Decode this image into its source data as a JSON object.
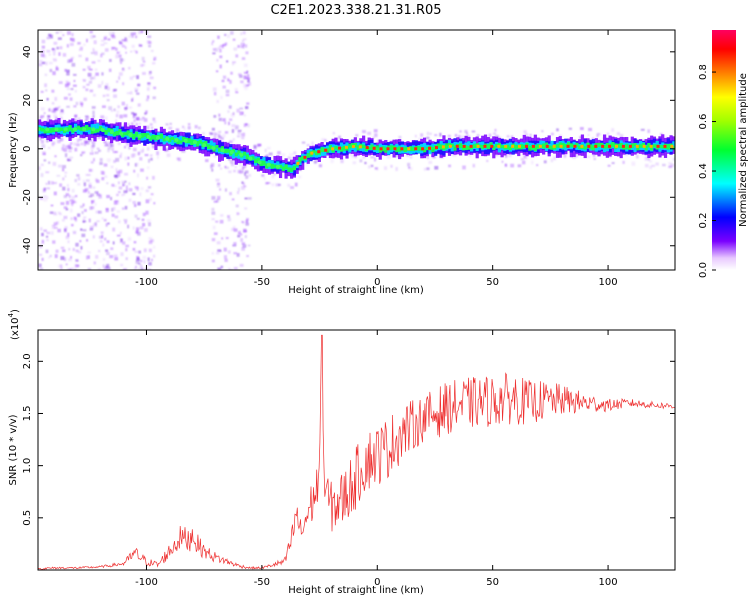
{
  "title": "C2E1.2023.338.21.31.R05",
  "colors": {
    "snr_line": "#ee3030",
    "frame": "#000000",
    "background": "#ffffff"
  },
  "chart_data": [
    {
      "type": "heatmap",
      "xlabel": "Height of straight line (km)",
      "ylabel": "Frequency (Hz)",
      "xlim": [
        -147,
        129
      ],
      "ylim": [
        -50,
        49
      ],
      "xticks": [
        "-100",
        "-50",
        "0",
        "50",
        "100"
      ],
      "yticks": [
        "-40",
        "-20",
        "0",
        "20",
        "40"
      ],
      "xtick_values": [
        -100,
        -50,
        0,
        50,
        100
      ],
      "ytick_values": [
        -40,
        -20,
        0,
        20,
        40
      ],
      "ridge": {
        "x": [
          -147,
          -140,
          -130,
          -120,
          -115,
          -110,
          -100,
          -90,
          -80,
          -70,
          -65,
          -60,
          -55,
          -50,
          -45,
          -40,
          -37,
          -34,
          -30,
          -25,
          -20,
          -10,
          0,
          10,
          20,
          30,
          40,
          50,
          60,
          70,
          80,
          90,
          100,
          110,
          120,
          129
        ],
        "y": [
          8,
          8,
          8,
          8,
          7,
          6,
          5,
          4,
          3,
          0,
          -1,
          -2,
          -4,
          -6,
          -7,
          -8,
          -8,
          -5,
          -2,
          -1,
          0,
          1,
          0,
          0,
          0,
          1,
          1,
          1,
          1,
          1,
          1,
          1,
          1,
          1,
          1,
          1
        ]
      },
      "colorbar": {
        "label": "Normalized spectral amplitude",
        "ticks": [
          "0.0",
          "0.2",
          "0.4",
          "0.6",
          "0.8"
        ],
        "tick_values": [
          0.0,
          0.2,
          0.4,
          0.6,
          0.8
        ],
        "range": [
          0,
          0.97
        ]
      }
    },
    {
      "type": "line",
      "xlabel": "Height of straight line (km)",
      "ylabel": "SNR (10 * v/v)",
      "multiplier": "(x10",
      "multiplier_exp": "4",
      "multiplier_close": ")",
      "xlim": [
        -147,
        129
      ],
      "ylim": [
        0,
        2.3
      ],
      "xticks": [
        "-100",
        "-50",
        "0",
        "50",
        "100"
      ],
      "yticks": [
        "0.5",
        "1.0",
        "1.5",
        "2.0"
      ],
      "xtick_values": [
        -100,
        -50,
        0,
        50,
        100
      ],
      "ytick_values": [
        0.5,
        1.0,
        1.5,
        2.0
      ],
      "series": [
        {
          "x": [
            -147,
            -140,
            -130,
            -120,
            -110,
            -105,
            -100,
            -95,
            -90,
            -85,
            -82,
            -80,
            -78,
            -75,
            -70,
            -65,
            -60,
            -55,
            -50,
            -45,
            -40,
            -37,
            -35,
            -33,
            -30,
            -27,
            -25,
            -24,
            -23,
            -20,
            -15,
            -10,
            -5,
            0,
            5,
            10,
            15,
            20,
            25,
            30,
            35,
            40,
            50,
            60,
            65,
            70,
            80,
            90,
            100,
            110,
            120,
            129
          ],
          "y": [
            0.01,
            0.02,
            0.02,
            0.03,
            0.06,
            0.16,
            0.08,
            0.05,
            0.18,
            0.32,
            0.28,
            0.35,
            0.25,
            0.18,
            0.12,
            0.08,
            0.04,
            0.02,
            0.02,
            0.05,
            0.08,
            0.3,
            0.55,
            0.35,
            0.55,
            0.72,
            0.9,
            2.22,
            0.8,
            0.6,
            0.68,
            0.85,
            1.05,
            1.1,
            1.18,
            1.3,
            1.38,
            1.45,
            1.5,
            1.55,
            1.58,
            1.6,
            1.62,
            1.65,
            1.6,
            1.62,
            1.63,
            1.6,
            1.58,
            1.6,
            1.58,
            1.57
          ],
          "noise": [
            0.01,
            0.01,
            0.01,
            0.01,
            0.02,
            0.07,
            0.04,
            0.03,
            0.08,
            0.12,
            0.12,
            0.14,
            0.1,
            0.07,
            0.05,
            0.03,
            0.02,
            0.01,
            0.01,
            0.02,
            0.04,
            0.12,
            0.15,
            0.12,
            0.2,
            0.22,
            0.25,
            0.1,
            0.2,
            0.25,
            0.28,
            0.3,
            0.3,
            0.3,
            0.3,
            0.28,
            0.25,
            0.22,
            0.25,
            0.25,
            0.25,
            0.25,
            0.25,
            0.25,
            0.22,
            0.2,
            0.15,
            0.1,
            0.06,
            0.04,
            0.03,
            0.03
          ]
        }
      ]
    }
  ]
}
